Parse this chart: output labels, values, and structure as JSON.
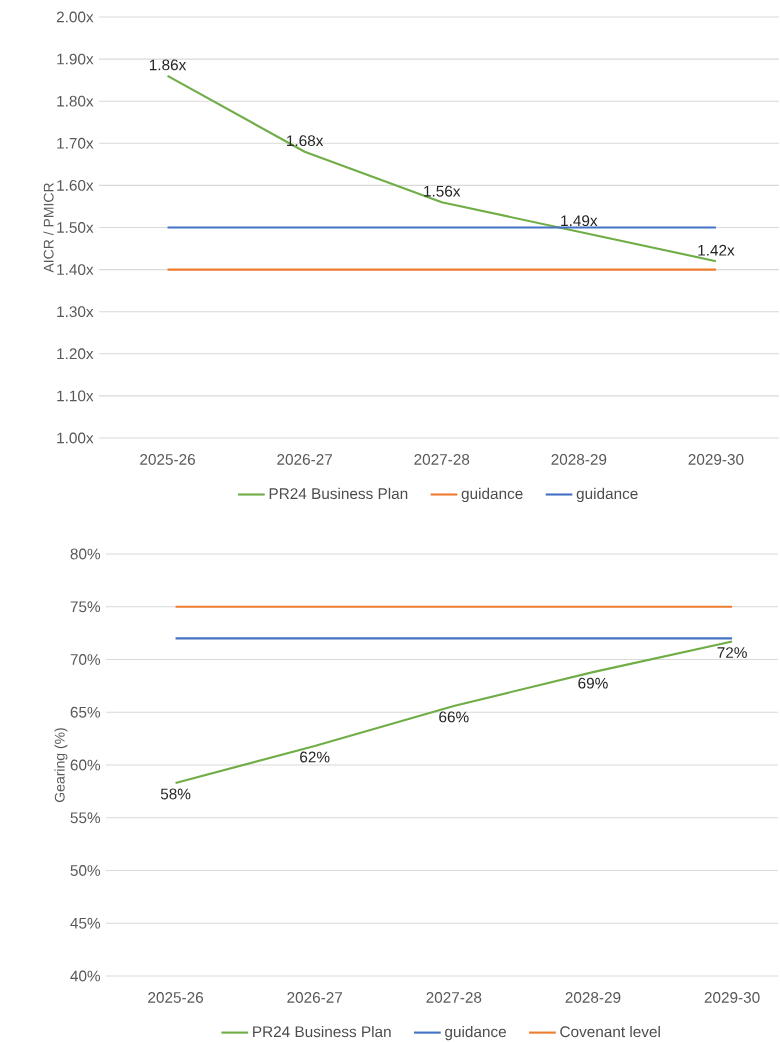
{
  "chart_data": [
    {
      "type": "line",
      "ylabel": "AICR / PMICR",
      "categories": [
        "2025-26",
        "2026-27",
        "2027-28",
        "2028-29",
        "2029-30"
      ],
      "series": [
        {
          "name": "PR24 Business Plan",
          "color": "#70ad47",
          "values": [
            1.86,
            1.68,
            1.56,
            1.49,
            1.42
          ],
          "value_labels": [
            "1.86x",
            "1.68x",
            "1.56x",
            "1.49x",
            "1.42x"
          ]
        },
        {
          "name": "guidance",
          "color": "#ed7d31",
          "values": [
            1.4,
            1.4,
            1.4,
            1.4,
            1.4
          ]
        },
        {
          "name": "guidance",
          "color": "#4472c4",
          "values": [
            1.5,
            1.5,
            1.5,
            1.5,
            1.5
          ]
        }
      ],
      "ylim": [
        1.0,
        2.0
      ],
      "yticks": [
        {
          "value": 1.0,
          "label": "1.00x"
        },
        {
          "value": 1.1,
          "label": "1.10x"
        },
        {
          "value": 1.2,
          "label": "1.20x"
        },
        {
          "value": 1.3,
          "label": "1.30x"
        },
        {
          "value": 1.4,
          "label": "1.40x"
        },
        {
          "value": 1.5,
          "label": "1.50x"
        },
        {
          "value": 1.6,
          "label": "1.60x"
        },
        {
          "value": 1.7,
          "label": "1.70x"
        },
        {
          "value": 1.8,
          "label": "1.80x"
        },
        {
          "value": 1.9,
          "label": "1.90x"
        },
        {
          "value": 2.0,
          "label": "2.00x"
        }
      ],
      "grid": "y",
      "legend": "bottom"
    },
    {
      "type": "line",
      "ylabel": "Gearing (%)",
      "categories": [
        "2025-26",
        "2026-27",
        "2027-28",
        "2028-29",
        "2029-30"
      ],
      "series": [
        {
          "name": "PR24 Business Plan",
          "color": "#70ad47",
          "values": [
            58.3,
            61.8,
            65.6,
            68.8,
            71.7
          ],
          "value_labels": [
            "58%",
            "62%",
            "66%",
            "69%",
            "72%"
          ]
        },
        {
          "name": "guidance",
          "color": "#4472c4",
          "values": [
            72,
            72,
            72,
            72,
            72
          ]
        },
        {
          "name": "Covenant level",
          "color": "#ed7d31",
          "values": [
            75,
            75,
            75,
            75,
            75
          ]
        }
      ],
      "ylim": [
        40,
        80
      ],
      "yticks": [
        {
          "value": 40,
          "label": "40%"
        },
        {
          "value": 45,
          "label": "45%"
        },
        {
          "value": 50,
          "label": "50%"
        },
        {
          "value": 55,
          "label": "55%"
        },
        {
          "value": 60,
          "label": "60%"
        },
        {
          "value": 65,
          "label": "65%"
        },
        {
          "value": 70,
          "label": "70%"
        },
        {
          "value": 75,
          "label": "75%"
        },
        {
          "value": 80,
          "label": "80%"
        }
      ],
      "grid": "y",
      "legend": "bottom"
    }
  ]
}
